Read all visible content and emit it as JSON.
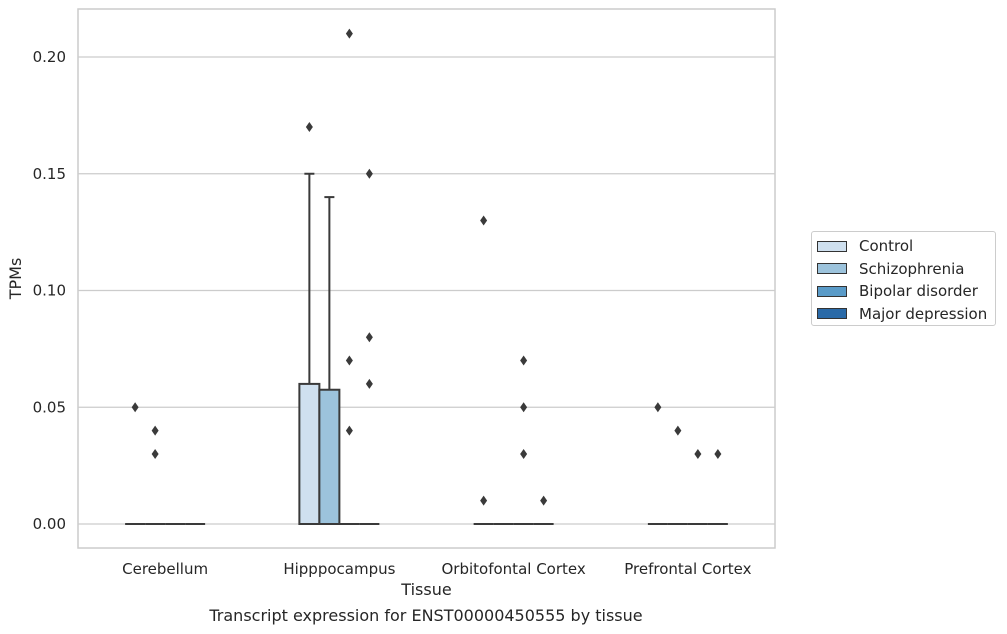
{
  "chart_data": {
    "type": "box",
    "categories": [
      "Cerebellum",
      "Hipppocampus",
      "Orbitofontal Cortex",
      "Prefrontal Cortex"
    ],
    "xlabel": "Tissue",
    "ylabel": "TPMs",
    "ylim": [
      -0.01,
      0.22
    ],
    "yticks": [
      "0.00",
      "0.05",
      "0.10",
      "0.15",
      "0.20"
    ],
    "grid": true,
    "legend_position": "right",
    "caption": "Transcript expression for ENST00000450555 by tissue",
    "series": [
      {
        "name": "Control",
        "color": "#cfe0ef",
        "boxes": [
          {
            "q1": 0,
            "q3": 0,
            "median": 0,
            "whisker_low": 0,
            "whisker_high": 0,
            "outliers": [
              0.05
            ]
          },
          {
            "q1": 0,
            "q3": 0.06,
            "median": 0,
            "whisker_low": 0,
            "whisker_high": 0.15,
            "outliers": [
              0.17
            ]
          },
          {
            "q1": 0,
            "q3": 0,
            "median": 0,
            "whisker_low": 0,
            "whisker_high": 0,
            "outliers": [
              0.13,
              0.01
            ]
          },
          {
            "q1": 0,
            "q3": 0,
            "median": 0,
            "whisker_low": 0,
            "whisker_high": 0,
            "outliers": [
              0.05
            ]
          }
        ]
      },
      {
        "name": "Schizophrenia",
        "color": "#9cc3dc",
        "boxes": [
          {
            "q1": 0,
            "q3": 0,
            "median": 0,
            "whisker_low": 0,
            "whisker_high": 0,
            "outliers": [
              0.04,
              0.03
            ]
          },
          {
            "q1": 0,
            "q3": 0.0575,
            "median": 0,
            "whisker_low": 0,
            "whisker_high": 0.14,
            "outliers": []
          },
          {
            "q1": 0,
            "q3": 0,
            "median": 0,
            "whisker_low": 0,
            "whisker_high": 0,
            "outliers": []
          },
          {
            "q1": 0,
            "q3": 0,
            "median": 0,
            "whisker_low": 0,
            "whisker_high": 0,
            "outliers": [
              0.04
            ]
          }
        ]
      },
      {
        "name": "Bipolar disorder",
        "color": "#5a9bc8",
        "boxes": [
          {
            "q1": 0,
            "q3": 0,
            "median": 0,
            "whisker_low": 0,
            "whisker_high": 0,
            "outliers": []
          },
          {
            "q1": 0,
            "q3": 0,
            "median": 0,
            "whisker_low": 0,
            "whisker_high": 0,
            "outliers": [
              0.21,
              0.07,
              0.04
            ]
          },
          {
            "q1": 0,
            "q3": 0,
            "median": 0,
            "whisker_low": 0,
            "whisker_high": 0,
            "outliers": [
              0.07,
              0.05,
              0.03
            ]
          },
          {
            "q1": 0,
            "q3": 0,
            "median": 0,
            "whisker_low": 0,
            "whisker_high": 0,
            "outliers": [
              0.03
            ]
          }
        ]
      },
      {
        "name": "Major depression",
        "color": "#2a6aa8",
        "boxes": [
          {
            "q1": 0,
            "q3": 0,
            "median": 0,
            "whisker_low": 0,
            "whisker_high": 0,
            "outliers": []
          },
          {
            "q1": 0,
            "q3": 0,
            "median": 0,
            "whisker_low": 0,
            "whisker_high": 0,
            "outliers": [
              0.15,
              0.08,
              0.06
            ]
          },
          {
            "q1": 0,
            "q3": 0,
            "median": 0,
            "whisker_low": 0,
            "whisker_high": 0,
            "outliers": [
              0.01
            ]
          },
          {
            "q1": 0,
            "q3": 0,
            "median": 0,
            "whisker_low": 0,
            "whisker_high": 0,
            "outliers": [
              0.03
            ]
          }
        ]
      }
    ]
  }
}
